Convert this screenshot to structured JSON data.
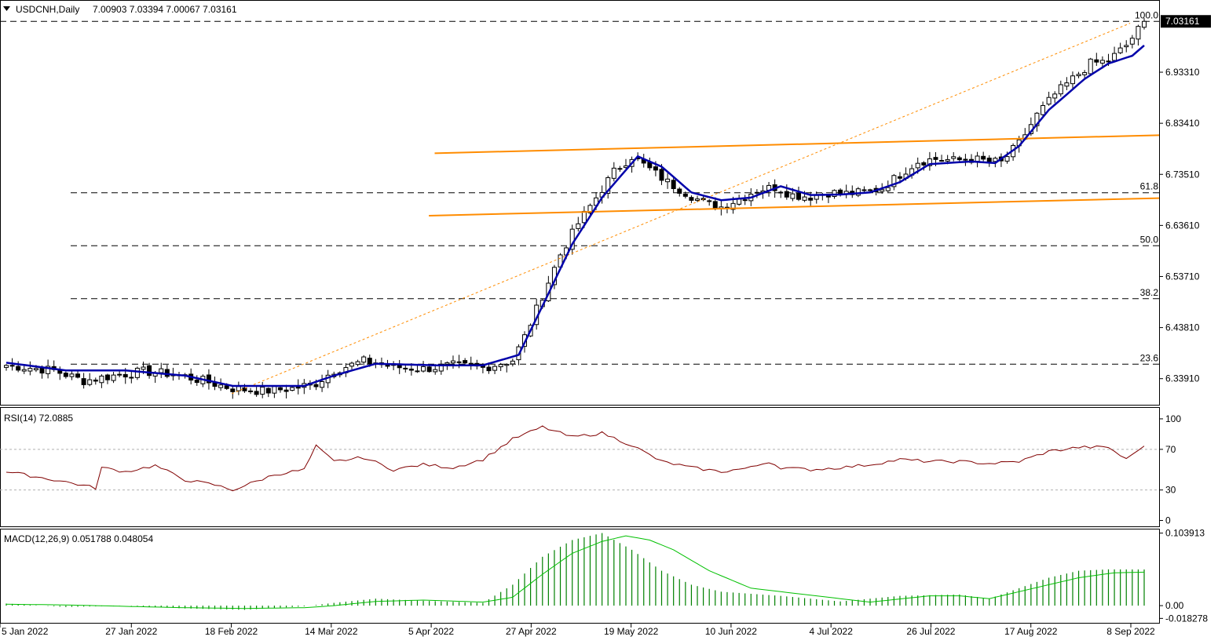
{
  "header": {
    "symbol": "USDCNH,Daily",
    "ohlc": "7.00903 7.03394 7.00067 7.03161",
    "menu_icon": "triangle-down-icon"
  },
  "chart_data": [
    {
      "type": "candlestick",
      "title": "USDCNH,Daily",
      "ylim": [
        6.29,
        7.07
      ],
      "y_ticks": [
        "6.33910",
        "6.43810",
        "6.53710",
        "6.63610",
        "6.73510",
        "6.83410",
        "6.93310"
      ],
      "current_price": "7.03161",
      "x_ticks": [
        "5 Jan 2022",
        "27 Jan 2022",
        "18 Feb 2022",
        "14 Mar 2022",
        "5 Apr 2022",
        "27 Apr 2022",
        "19 May 2022",
        "10 Jun 2022",
        "4 Jul 2022",
        "26 Jul 2022",
        "17 Aug 2022",
        "8 Sep 2022"
      ],
      "fibonacci": {
        "levels": [
          {
            "label": "100.0",
            "price": 7.0316
          },
          {
            "label": "61.8",
            "price": 6.6994
          },
          {
            "label": "50.0",
            "price": 6.5967
          },
          {
            "label": "38.2",
            "price": 6.4941
          },
          {
            "label": "23.6",
            "price": 6.3671
          }
        ]
      },
      "channel": {
        "color": "#ff8c00",
        "upper": {
          "from": [
            0.375,
            6.776
          ],
          "to": [
            1.0,
            6.811
          ]
        },
        "lower": {
          "from": [
            0.37,
            6.655
          ],
          "to": [
            1.0,
            6.689
          ]
        }
      },
      "trend_line": {
        "from": [
          0.2,
          6.31
        ],
        "to": [
          0.975,
          7.028
        ],
        "color": "#ff8c00"
      },
      "moving_average_color": "#0000aa",
      "anchors": [
        [
          0,
          6.365
        ],
        [
          8,
          6.355
        ],
        [
          13,
          6.335
        ],
        [
          18,
          6.345
        ],
        [
          23,
          6.353
        ],
        [
          28,
          6.348
        ],
        [
          33,
          6.335
        ],
        [
          38,
          6.32
        ],
        [
          43,
          6.315
        ],
        [
          48,
          6.32
        ],
        [
          52,
          6.33
        ],
        [
          55,
          6.355
        ],
        [
          60,
          6.373
        ],
        [
          65,
          6.362
        ],
        [
          70,
          6.358
        ],
        [
          75,
          6.365
        ],
        [
          80,
          6.36
        ],
        [
          85,
          6.375
        ],
        [
          87,
          6.42
        ],
        [
          90,
          6.5
        ],
        [
          93,
          6.58
        ],
        [
          96,
          6.64
        ],
        [
          99,
          6.69
        ],
        [
          102,
          6.74
        ],
        [
          105,
          6.77
        ],
        [
          108,
          6.745
        ],
        [
          111,
          6.72
        ],
        [
          114,
          6.7
        ],
        [
          117,
          6.68
        ],
        [
          120,
          6.672
        ],
        [
          123,
          6.688
        ],
        [
          126,
          6.705
        ],
        [
          129,
          6.71
        ],
        [
          132,
          6.695
        ],
        [
          135,
          6.692
        ],
        [
          138,
          6.7
        ],
        [
          141,
          6.698
        ],
        [
          144,
          6.7
        ],
        [
          147,
          6.708
        ],
        [
          150,
          6.735
        ],
        [
          153,
          6.76
        ],
        [
          156,
          6.765
        ],
        [
          159,
          6.762
        ],
        [
          162,
          6.765
        ],
        [
          165,
          6.76
        ],
        [
          167,
          6.758
        ],
        [
          170,
          6.795
        ],
        [
          173,
          6.85
        ],
        [
          176,
          6.89
        ],
        [
          179,
          6.92
        ],
        [
          182,
          6.95
        ],
        [
          185,
          6.955
        ],
        [
          188,
          6.985
        ],
        [
          190,
          7.015
        ],
        [
          191,
          7.025
        ]
      ],
      "ma_anchors": [
        [
          0,
          6.37
        ],
        [
          10,
          6.355
        ],
        [
          20,
          6.355
        ],
        [
          30,
          6.345
        ],
        [
          38,
          6.325
        ],
        [
          50,
          6.325
        ],
        [
          55,
          6.345
        ],
        [
          62,
          6.368
        ],
        [
          72,
          6.365
        ],
        [
          80,
          6.365
        ],
        [
          86,
          6.385
        ],
        [
          90,
          6.48
        ],
        [
          95,
          6.6
        ],
        [
          100,
          6.69
        ],
        [
          106,
          6.77
        ],
        [
          110,
          6.75
        ],
        [
          115,
          6.7
        ],
        [
          120,
          6.685
        ],
        [
          125,
          6.69
        ],
        [
          130,
          6.712
        ],
        [
          135,
          6.695
        ],
        [
          140,
          6.696
        ],
        [
          145,
          6.7
        ],
        [
          150,
          6.72
        ],
        [
          155,
          6.755
        ],
        [
          162,
          6.76
        ],
        [
          166,
          6.757
        ],
        [
          170,
          6.79
        ],
        [
          175,
          6.86
        ],
        [
          181,
          6.92
        ],
        [
          185,
          6.95
        ],
        [
          189,
          6.965
        ],
        [
          191,
          6.985
        ]
      ]
    },
    {
      "type": "line",
      "title": "RSI(14) 72.0885",
      "ylim": [
        -5,
        110
      ],
      "y_ticks": [
        "100",
        "70",
        "30",
        "0"
      ],
      "levels": [
        70,
        30
      ],
      "color": "#800000",
      "anchors": [
        [
          0,
          48
        ],
        [
          5,
          43
        ],
        [
          10,
          38
        ],
        [
          15,
          32
        ],
        [
          16,
          52
        ],
        [
          20,
          48
        ],
        [
          25,
          54
        ],
        [
          30,
          40
        ],
        [
          35,
          35
        ],
        [
          38,
          30
        ],
        [
          45,
          45
        ],
        [
          50,
          50
        ],
        [
          52,
          73
        ],
        [
          55,
          58
        ],
        [
          60,
          62
        ],
        [
          65,
          50
        ],
        [
          70,
          55
        ],
        [
          75,
          52
        ],
        [
          80,
          60
        ],
        [
          85,
          80
        ],
        [
          90,
          92
        ],
        [
          95,
          82
        ],
        [
          100,
          86
        ],
        [
          105,
          74
        ],
        [
          110,
          58
        ],
        [
          115,
          52
        ],
        [
          120,
          48
        ],
        [
          125,
          52
        ],
        [
          128,
          58
        ],
        [
          130,
          52
        ],
        [
          135,
          50
        ],
        [
          140,
          52
        ],
        [
          145,
          55
        ],
        [
          150,
          60
        ],
        [
          155,
          58
        ],
        [
          160,
          58
        ],
        [
          165,
          56
        ],
        [
          170,
          58
        ],
        [
          175,
          68
        ],
        [
          180,
          72
        ],
        [
          185,
          72
        ],
        [
          188,
          60
        ],
        [
          190,
          70
        ],
        [
          191,
          72.1
        ]
      ]
    },
    {
      "type": "bar",
      "title": "MACD(12,26,9) 0.051788 0.048054",
      "ylim": [
        -0.0235,
        0.108
      ],
      "y_ticks": [
        "0.103913",
        "0.00",
        "-0.018278"
      ],
      "bar_color": "#008000",
      "signal_color": "#00c000",
      "macd_anchors": [
        [
          0,
          0.003
        ],
        [
          10,
          -0.002
        ],
        [
          20,
          0.0
        ],
        [
          30,
          -0.004
        ],
        [
          40,
          -0.006
        ],
        [
          50,
          -0.001
        ],
        [
          55,
          0.004
        ],
        [
          62,
          0.01
        ],
        [
          70,
          0.007
        ],
        [
          80,
          0.004
        ],
        [
          85,
          0.03
        ],
        [
          90,
          0.07
        ],
        [
          95,
          0.094
        ],
        [
          100,
          0.104
        ],
        [
          105,
          0.08
        ],
        [
          110,
          0.05
        ],
        [
          115,
          0.03
        ],
        [
          120,
          0.02
        ],
        [
          130,
          0.014
        ],
        [
          140,
          0.006
        ],
        [
          150,
          0.014
        ],
        [
          160,
          0.016
        ],
        [
          165,
          0.01
        ],
        [
          170,
          0.025
        ],
        [
          175,
          0.04
        ],
        [
          180,
          0.05
        ],
        [
          185,
          0.052
        ],
        [
          191,
          0.0518
        ]
      ],
      "signal_anchors": [
        [
          0,
          0.002
        ],
        [
          10,
          0.001
        ],
        [
          20,
          -0.001
        ],
        [
          30,
          -0.003
        ],
        [
          40,
          -0.004
        ],
        [
          50,
          -0.003
        ],
        [
          55,
          0.0
        ],
        [
          62,
          0.006
        ],
        [
          70,
          0.008
        ],
        [
          80,
          0.005
        ],
        [
          85,
          0.012
        ],
        [
          90,
          0.045
        ],
        [
          95,
          0.075
        ],
        [
          100,
          0.092
        ],
        [
          104,
          0.1
        ],
        [
          108,
          0.094
        ],
        [
          112,
          0.08
        ],
        [
          118,
          0.05
        ],
        [
          125,
          0.025
        ],
        [
          135,
          0.015
        ],
        [
          145,
          0.005
        ],
        [
          155,
          0.014
        ],
        [
          160,
          0.014
        ],
        [
          165,
          0.01
        ],
        [
          172,
          0.024
        ],
        [
          180,
          0.04
        ],
        [
          186,
          0.047
        ],
        [
          191,
          0.048
        ]
      ]
    }
  ]
}
